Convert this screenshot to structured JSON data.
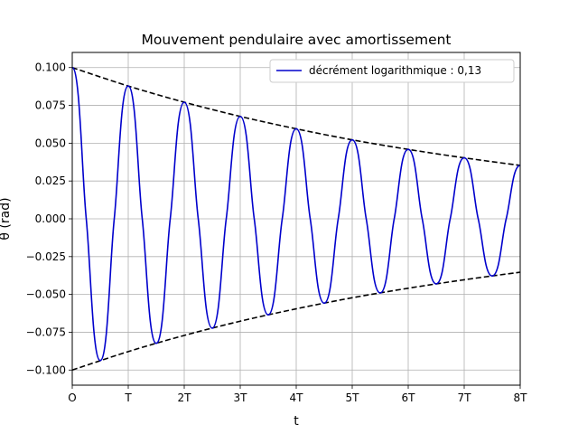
{
  "chart_data": {
    "type": "line",
    "title": "Mouvement pendulaire avec amortissement",
    "xlabel": "t",
    "ylabel": "θ (rad)",
    "xlim": [
      0,
      8
    ],
    "ylim": [
      -0.11,
      0.11
    ],
    "grid": true,
    "legend_position": "top-right",
    "x_ticks": [
      {
        "value": 0,
        "label": "O"
      },
      {
        "value": 1,
        "label": "T"
      },
      {
        "value": 2,
        "label": "2T"
      },
      {
        "value": 3,
        "label": "3T"
      },
      {
        "value": 4,
        "label": "4T"
      },
      {
        "value": 5,
        "label": "5T"
      },
      {
        "value": 6,
        "label": "6T"
      },
      {
        "value": 7,
        "label": "7T"
      },
      {
        "value": 8,
        "label": "8T"
      }
    ],
    "y_ticks": [
      {
        "value": 0.1,
        "label": "0.100"
      },
      {
        "value": 0.075,
        "label": "0.075"
      },
      {
        "value": 0.05,
        "label": "0.050"
      },
      {
        "value": 0.025,
        "label": "0.025"
      },
      {
        "value": 0,
        "label": "0.000"
      },
      {
        "value": -0.025,
        "label": "−0.025"
      },
      {
        "value": -0.05,
        "label": "−0.050"
      },
      {
        "value": -0.075,
        "label": "−0.075"
      },
      {
        "value": -0.1,
        "label": "−0.100"
      }
    ],
    "series": [
      {
        "name": "décrément logarithmique : 0,13",
        "style": "solid",
        "color": "#0000cc",
        "x": [
          0,
          0.25,
          0.5,
          0.75,
          1,
          1.25,
          1.5,
          1.75,
          2,
          2.25,
          2.5,
          2.75,
          3,
          3.25,
          3.5,
          3.75,
          4,
          4.25,
          4.5,
          4.75,
          5,
          5.25,
          5.5,
          5.75,
          6,
          6.25,
          6.5,
          6.75,
          7,
          7.25,
          7.5,
          7.75,
          8
        ],
        "y": [
          0.1,
          0.0,
          -0.0937,
          0.0,
          0.0878,
          0.0,
          -0.0823,
          0.0,
          0.0771,
          0.0,
          -0.0723,
          0.0,
          0.0677,
          0.0,
          -0.0635,
          0.0,
          0.0595,
          0.0,
          -0.0558,
          0.0,
          0.0522,
          0.0,
          -0.049,
          0.0,
          0.0459,
          0.0,
          -0.043,
          0.0,
          0.0403,
          0.0,
          -0.0378,
          0.0,
          0.0353
        ]
      },
      {
        "style": "dashed",
        "color": "#000000",
        "x": [
          0,
          1,
          2,
          3,
          4,
          5,
          6,
          7,
          8
        ],
        "y": [
          0.1,
          0.0878,
          0.0771,
          0.0677,
          0.0595,
          0.0522,
          0.0459,
          0.0403,
          0.0353
        ]
      },
      {
        "style": "dashed",
        "color": "#000000",
        "x": [
          0,
          1,
          2,
          3,
          4,
          5,
          6,
          7,
          8
        ],
        "y": [
          -0.1,
          -0.0878,
          -0.0771,
          -0.0677,
          -0.0595,
          -0.0522,
          -0.0459,
          -0.0403,
          -0.0353
        ]
      }
    ]
  }
}
